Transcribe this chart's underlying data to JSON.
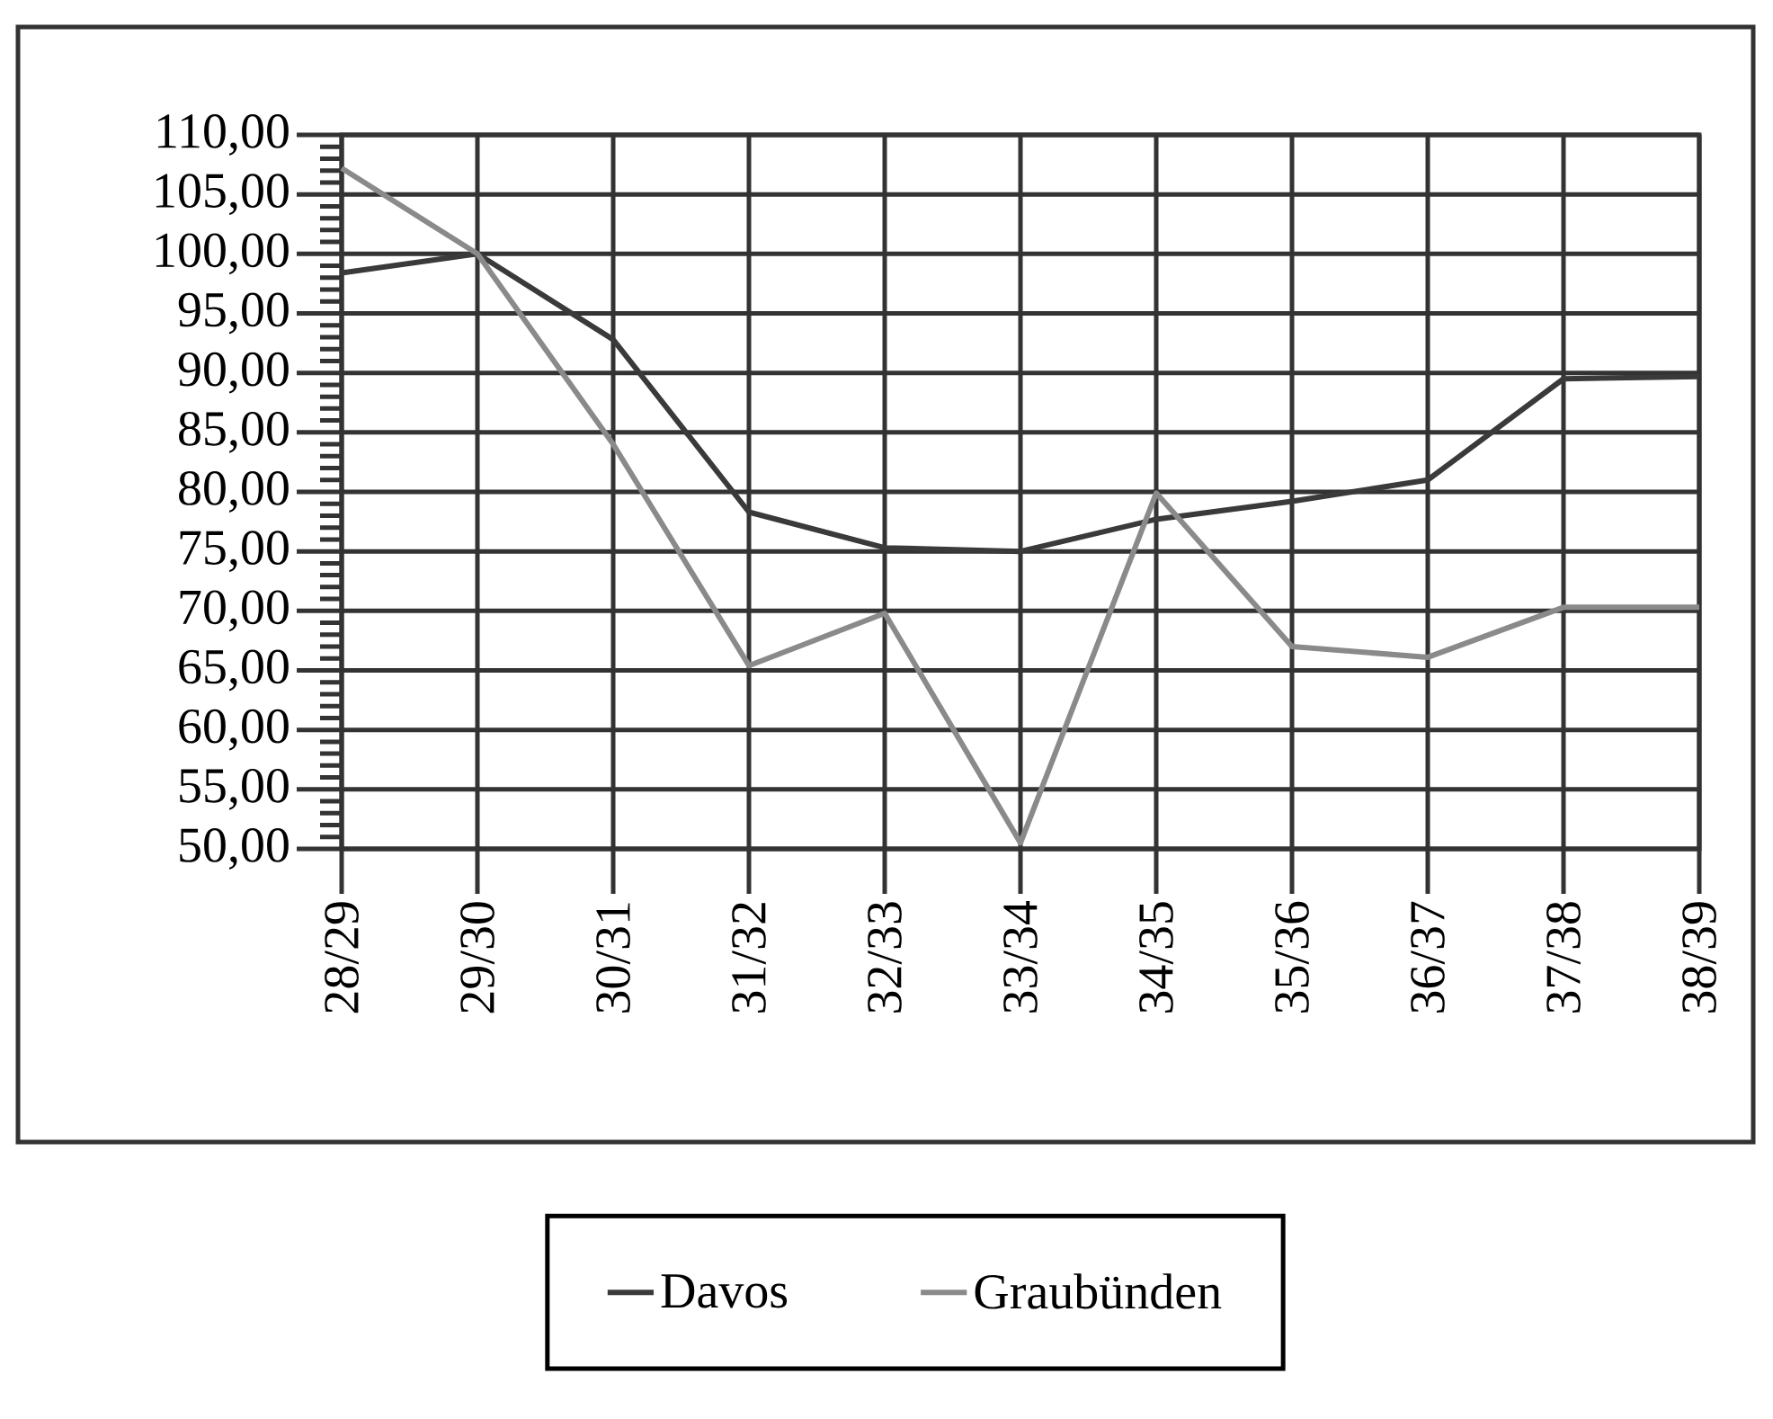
{
  "chart_data": {
    "type": "line",
    "categories": [
      "28/29",
      "29/30",
      "30/31",
      "31/32",
      "32/33",
      "33/34",
      "34/35",
      "35/36",
      "36/37",
      "37/38",
      "38/39"
    ],
    "series": [
      {
        "name": "Davos",
        "color": "#3a3a3a",
        "values": [
          98.4,
          100,
          92.8,
          78.3,
          75.3,
          75.0,
          77.7,
          79.2,
          81.0,
          89.5,
          89.7
        ]
      },
      {
        "name": "Graubünden",
        "color": "#8a8a8a",
        "values": [
          107.2,
          100,
          84.0,
          65.4,
          69.8,
          50.5,
          79.9,
          67.0,
          66.1,
          70.3,
          70.3
        ]
      }
    ],
    "ylim": [
      50,
      110
    ],
    "yticks": [
      {
        "value": 50,
        "label": "50,00"
      },
      {
        "value": 55,
        "label": "55,00"
      },
      {
        "value": 60,
        "label": "60,00"
      },
      {
        "value": 65,
        "label": "65,00"
      },
      {
        "value": 70,
        "label": "70,00"
      },
      {
        "value": 75,
        "label": "75,00"
      },
      {
        "value": 80,
        "label": "80,00"
      },
      {
        "value": 85,
        "label": "85,00"
      },
      {
        "value": 90,
        "label": "90,00"
      },
      {
        "value": 95,
        "label": "95,00"
      },
      {
        "value": 100,
        "label": "100,00"
      },
      {
        "value": 105,
        "label": "105,00"
      },
      {
        "value": 110,
        "label": "110,00"
      }
    ],
    "grid": true,
    "legend": "bottom"
  }
}
